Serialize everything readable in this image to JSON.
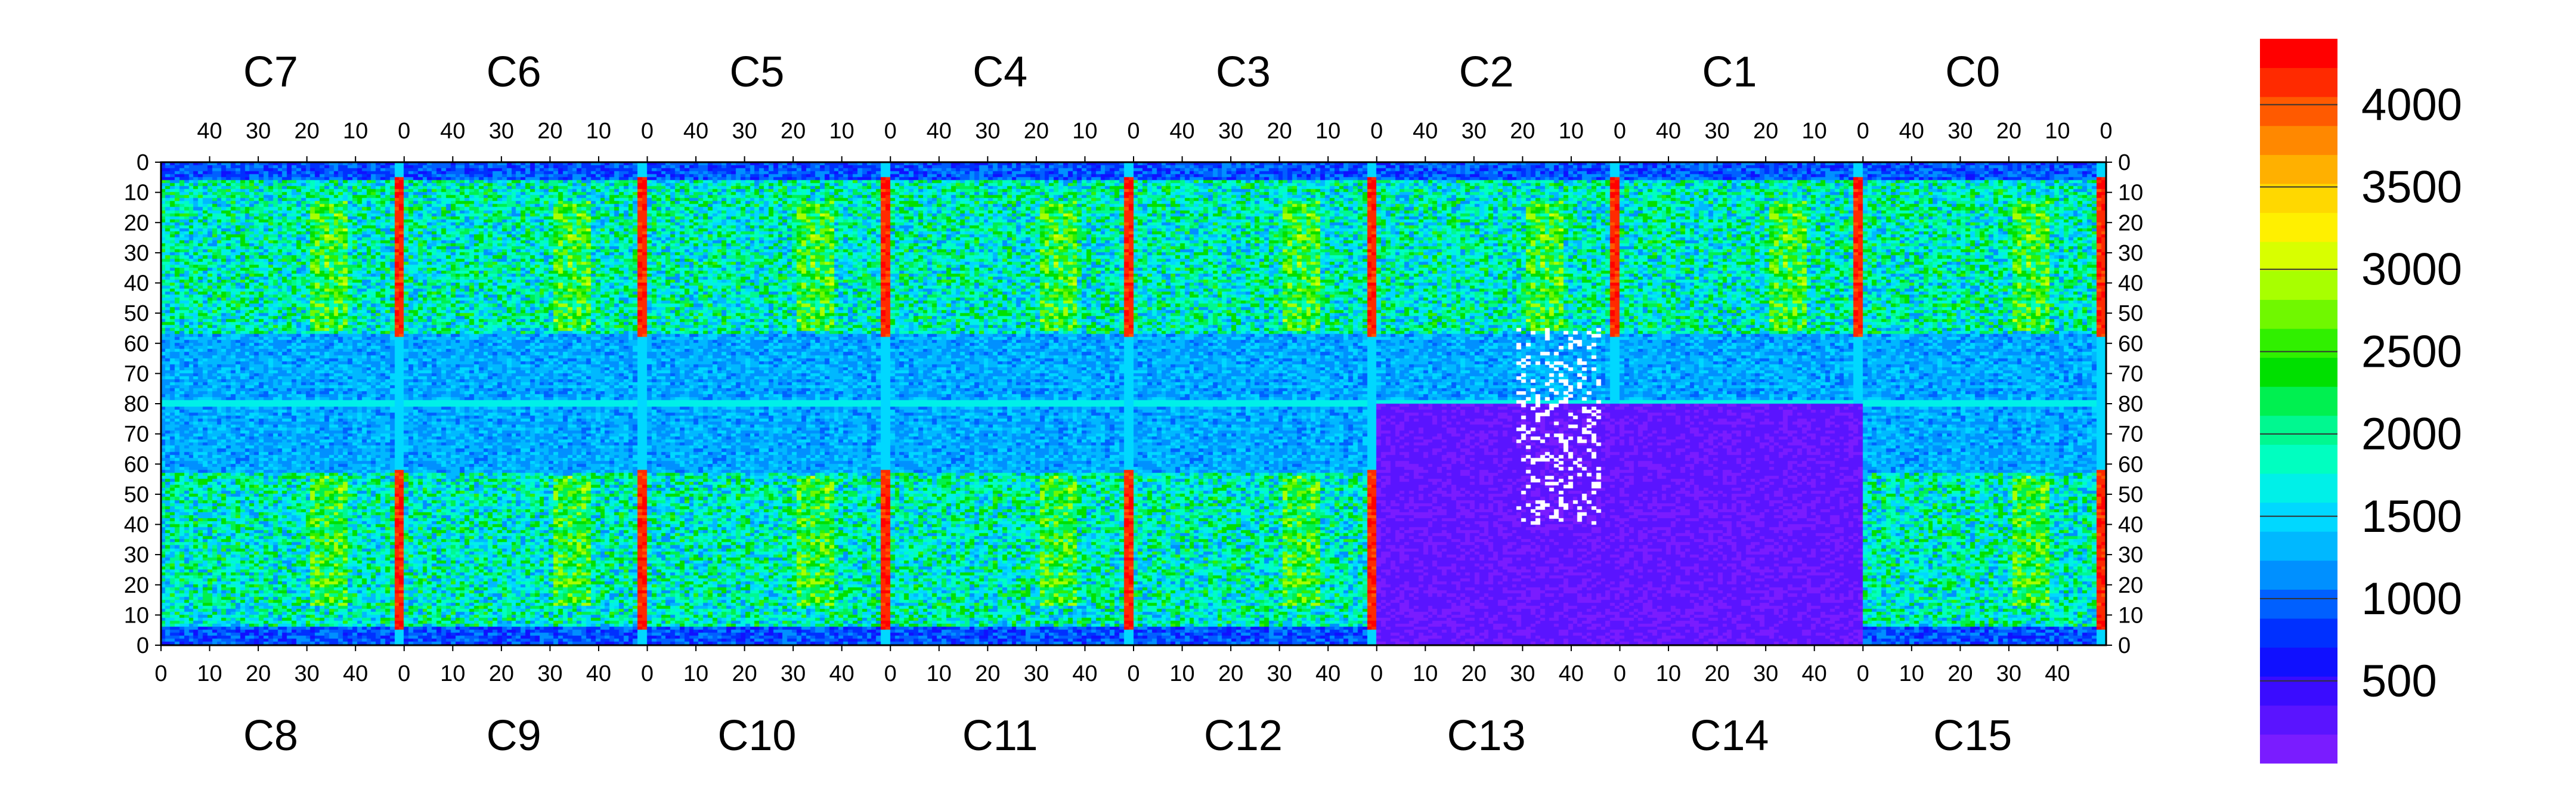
{
  "chart_data": {
    "type": "heatmap",
    "title": "",
    "colormap": [
      "#7a1cff",
      "#5a14ff",
      "#3a0cff",
      "#1010ff",
      "#0030ff",
      "#0060ff",
      "#0090ff",
      "#00b8ff",
      "#00d8ff",
      "#00f0e8",
      "#00ffc0",
      "#00f890",
      "#00f050",
      "#00e000",
      "#30f000",
      "#70f800",
      "#a8ff00",
      "#d8ff00",
      "#fff000",
      "#ffd800",
      "#ffb000",
      "#ff8800",
      "#ff5a00",
      "#ff2a00",
      "#ff0000"
    ],
    "colorbar": {
      "min": 0,
      "max": 4400,
      "ticks": [
        "500",
        "1000",
        "1500",
        "2000",
        "2500",
        "3000",
        "3500",
        "4000"
      ]
    },
    "top_chips": [
      "C7",
      "C6",
      "C5",
      "C4",
      "C3",
      "C2",
      "C1",
      "C0"
    ],
    "bottom_chips": [
      "C8",
      "C9",
      "C10",
      "C11",
      "C12",
      "C13",
      "C14",
      "C15"
    ],
    "top_col_ticks": [
      "40",
      "30",
      "20",
      "10",
      "0"
    ],
    "bottom_col_ticks": [
      "0",
      "10",
      "20",
      "30",
      "40"
    ],
    "row_ticks": [
      "0",
      "10",
      "20",
      "30",
      "40",
      "50",
      "60",
      "70",
      "80",
      "70",
      "60",
      "50",
      "40",
      "30",
      "20",
      "10",
      "0"
    ],
    "cols_per_chip": 52,
    "rows_per_half": 80,
    "features": {
      "hot_stripe_chips_top": [
        "C7",
        "C6",
        "C5",
        "C4",
        "C3",
        "C2",
        "C1",
        "C0"
      ],
      "dead_region_chips": [
        "C13",
        "C14"
      ],
      "white_pixel_region_chip": "C13",
      "background_level": 1800,
      "empty_band_level": 600
    }
  }
}
